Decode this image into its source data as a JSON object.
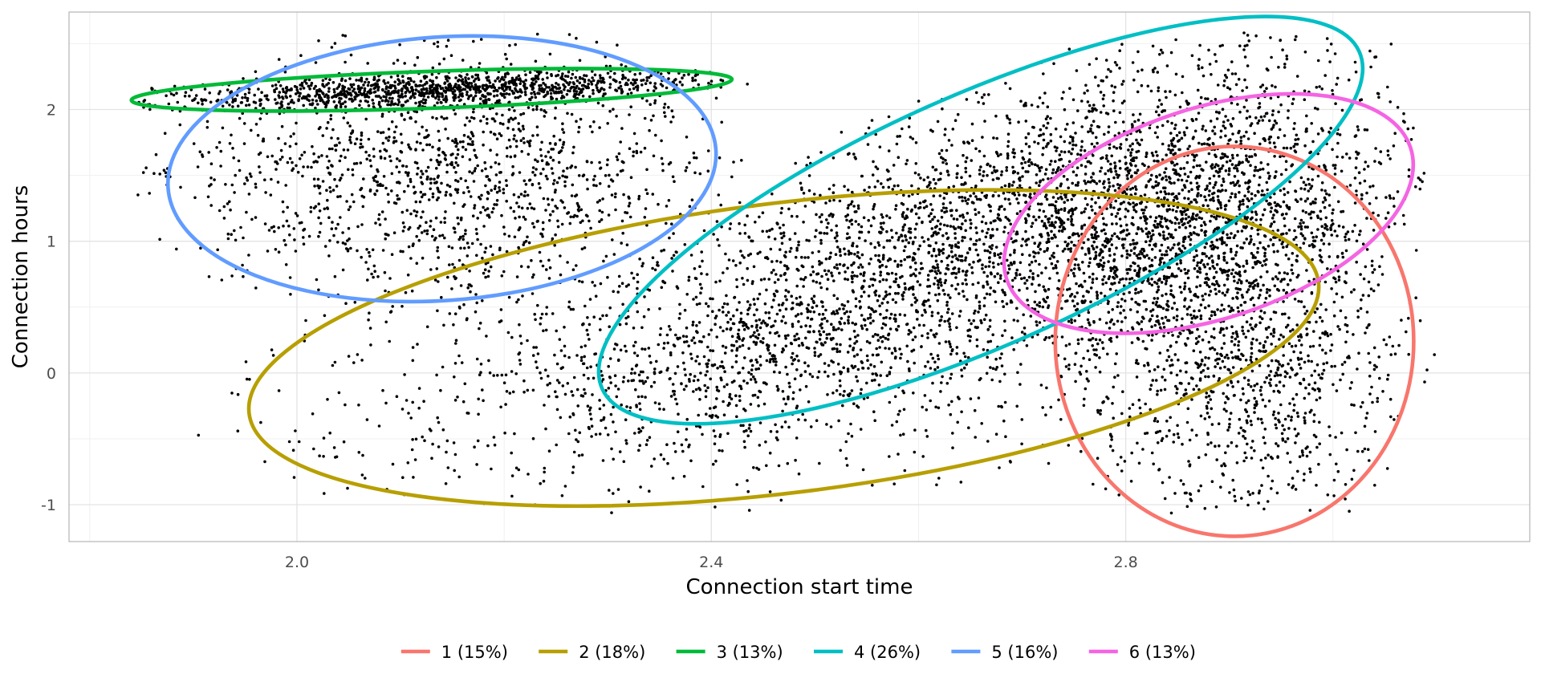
{
  "chart_data": {
    "type": "scatter",
    "title": "",
    "xlabel": "Connection start time",
    "ylabel": "Connection hours",
    "xlim": [
      1.78,
      3.19
    ],
    "ylim": [
      -1.28,
      2.74
    ],
    "x_ticks": [
      {
        "value": 2.0,
        "label": "2.0"
      },
      {
        "value": 2.4,
        "label": "2.4"
      },
      {
        "value": 2.8,
        "label": "2.8"
      }
    ],
    "y_ticks": [
      {
        "value": -1,
        "label": "-1"
      },
      {
        "value": 0,
        "label": "0"
      },
      {
        "value": 1,
        "label": "1"
      },
      {
        "value": 2,
        "label": "2"
      }
    ],
    "grid": true,
    "legend_position": "bottom",
    "point_color": "#000000",
    "clusters": [
      {
        "label": "1 (15%)",
        "color": "#F8766D",
        "cx": 2.905,
        "cy": 0.24,
        "rx": 0.173,
        "ry": 1.48,
        "angle": 0
      },
      {
        "label": "2 (18%)",
        "color": "#B79F00",
        "cx": 2.47,
        "cy": 0.19,
        "rx": 0.52,
        "ry": 1.1,
        "angle": -7
      },
      {
        "label": "3 (13%)",
        "color": "#00BA38",
        "cx": 2.13,
        "cy": 2.15,
        "rx": 0.29,
        "ry": 0.14,
        "angle": -2
      },
      {
        "label": "4 (26%)",
        "color": "#00BFC4",
        "cx": 2.66,
        "cy": 1.16,
        "rx": 0.4,
        "ry": 0.95,
        "angle": -24
      },
      {
        "label": "5 (16%)",
        "color": "#619CFF",
        "cx": 2.14,
        "cy": 1.55,
        "rx": 0.265,
        "ry": 1.0,
        "angle": -4
      },
      {
        "label": "6 (13%)",
        "color": "#F564E3",
        "cx": 2.88,
        "cy": 1.21,
        "rx": 0.205,
        "ry": 0.8,
        "angle": -18
      }
    ]
  }
}
